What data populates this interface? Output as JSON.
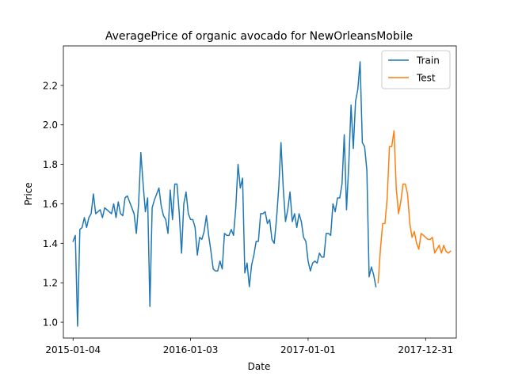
{
  "chart_data": {
    "type": "line",
    "title": "AveragePrice of organic avocado for NewOrleansMobile",
    "xlabel": "Date",
    "ylabel": "Price",
    "xlim": [
      "2014-12-05",
      "2018-04-05"
    ],
    "ylim": [
      0.92,
      2.4
    ],
    "x_ticks": [
      "2015-01-04",
      "2016-01-03",
      "2017-01-01",
      "2017-12-31"
    ],
    "y_ticks": [
      1.0,
      1.2,
      1.4,
      1.6,
      1.8,
      2.0,
      2.2
    ],
    "y_tick_labels": [
      "1.0",
      "1.2",
      "1.4",
      "1.6",
      "1.8",
      "2.0",
      "2.2"
    ],
    "grid": false,
    "legend_position": "upper right",
    "series": [
      {
        "name": "Train",
        "color": "#1f77b4",
        "points": [
          [
            "2015-01-04",
            1.41
          ],
          [
            "2015-01-11",
            1.44
          ],
          [
            "2015-01-18",
            0.98
          ],
          [
            "2015-01-25",
            1.47
          ],
          [
            "2015-02-01",
            1.48
          ],
          [
            "2015-02-08",
            1.53
          ],
          [
            "2015-02-15",
            1.48
          ],
          [
            "2015-02-22",
            1.53
          ],
          [
            "2015-03-01",
            1.55
          ],
          [
            "2015-03-08",
            1.65
          ],
          [
            "2015-03-15",
            1.55
          ],
          [
            "2015-03-22",
            1.56
          ],
          [
            "2015-03-29",
            1.57
          ],
          [
            "2015-04-05",
            1.53
          ],
          [
            "2015-04-12",
            1.58
          ],
          [
            "2015-04-19",
            1.57
          ],
          [
            "2015-04-26",
            1.56
          ],
          [
            "2015-05-03",
            1.55
          ],
          [
            "2015-05-10",
            1.6
          ],
          [
            "2015-05-17",
            1.53
          ],
          [
            "2015-05-24",
            1.61
          ],
          [
            "2015-05-31",
            1.55
          ],
          [
            "2015-06-07",
            1.54
          ],
          [
            "2015-06-14",
            1.63
          ],
          [
            "2015-06-21",
            1.64
          ],
          [
            "2015-06-28",
            1.61
          ],
          [
            "2015-07-05",
            1.58
          ],
          [
            "2015-07-12",
            1.55
          ],
          [
            "2015-07-19",
            1.45
          ],
          [
            "2015-07-26",
            1.6
          ],
          [
            "2015-08-02",
            1.86
          ],
          [
            "2015-08-09",
            1.7
          ],
          [
            "2015-08-16",
            1.56
          ],
          [
            "2015-08-23",
            1.63
          ],
          [
            "2015-08-30",
            1.08
          ],
          [
            "2015-09-06",
            1.58
          ],
          [
            "2015-09-13",
            1.62
          ],
          [
            "2015-09-20",
            1.65
          ],
          [
            "2015-09-27",
            1.68
          ],
          [
            "2015-10-04",
            1.59
          ],
          [
            "2015-10-11",
            1.54
          ],
          [
            "2015-10-18",
            1.52
          ],
          [
            "2015-10-25",
            1.45
          ],
          [
            "2015-11-01",
            1.67
          ],
          [
            "2015-11-08",
            1.52
          ],
          [
            "2015-11-15",
            1.7
          ],
          [
            "2015-11-22",
            1.7
          ],
          [
            "2015-11-29",
            1.55
          ],
          [
            "2015-12-06",
            1.35
          ],
          [
            "2015-12-13",
            1.6
          ],
          [
            "2015-12-20",
            1.66
          ],
          [
            "2015-12-27",
            1.55
          ],
          [
            "2016-01-03",
            1.52
          ],
          [
            "2016-01-10",
            1.52
          ],
          [
            "2016-01-17",
            1.48
          ],
          [
            "2016-01-24",
            1.34
          ],
          [
            "2016-01-31",
            1.43
          ],
          [
            "2016-02-07",
            1.42
          ],
          [
            "2016-02-14",
            1.46
          ],
          [
            "2016-02-21",
            1.54
          ],
          [
            "2016-02-28",
            1.44
          ],
          [
            "2016-03-06",
            1.36
          ],
          [
            "2016-03-13",
            1.27
          ],
          [
            "2016-03-20",
            1.26
          ],
          [
            "2016-03-27",
            1.26
          ],
          [
            "2016-04-03",
            1.31
          ],
          [
            "2016-04-10",
            1.27
          ],
          [
            "2016-04-17",
            1.45
          ],
          [
            "2016-04-24",
            1.44
          ],
          [
            "2016-05-01",
            1.44
          ],
          [
            "2016-05-08",
            1.47
          ],
          [
            "2016-05-15",
            1.44
          ],
          [
            "2016-05-22",
            1.58
          ],
          [
            "2016-05-29",
            1.8
          ],
          [
            "2016-06-05",
            1.68
          ],
          [
            "2016-06-12",
            1.73
          ],
          [
            "2016-06-19",
            1.25
          ],
          [
            "2016-06-26",
            1.3
          ],
          [
            "2016-07-03",
            1.18
          ],
          [
            "2016-07-10",
            1.29
          ],
          [
            "2016-07-17",
            1.34
          ],
          [
            "2016-07-24",
            1.41
          ],
          [
            "2016-07-31",
            1.41
          ],
          [
            "2016-08-07",
            1.55
          ],
          [
            "2016-08-14",
            1.55
          ],
          [
            "2016-08-21",
            1.56
          ],
          [
            "2016-08-28",
            1.5
          ],
          [
            "2016-09-04",
            1.52
          ],
          [
            "2016-09-11",
            1.42
          ],
          [
            "2016-09-18",
            1.4
          ],
          [
            "2016-09-25",
            1.52
          ],
          [
            "2016-10-02",
            1.68
          ],
          [
            "2016-10-09",
            1.91
          ],
          [
            "2016-10-16",
            1.68
          ],
          [
            "2016-10-23",
            1.51
          ],
          [
            "2016-10-30",
            1.57
          ],
          [
            "2016-11-06",
            1.66
          ],
          [
            "2016-11-13",
            1.51
          ],
          [
            "2016-11-20",
            1.55
          ],
          [
            "2016-11-27",
            1.48
          ],
          [
            "2016-12-04",
            1.55
          ],
          [
            "2016-12-11",
            1.51
          ],
          [
            "2016-12-18",
            1.43
          ],
          [
            "2016-12-25",
            1.41
          ],
          [
            "2017-01-01",
            1.31
          ],
          [
            "2017-01-08",
            1.26
          ],
          [
            "2017-01-15",
            1.3
          ],
          [
            "2017-01-22",
            1.31
          ],
          [
            "2017-01-29",
            1.3
          ],
          [
            "2017-02-05",
            1.35
          ],
          [
            "2017-02-12",
            1.33
          ],
          [
            "2017-02-19",
            1.33
          ],
          [
            "2017-02-26",
            1.45
          ],
          [
            "2017-03-05",
            1.45
          ],
          [
            "2017-03-12",
            1.44
          ],
          [
            "2017-03-19",
            1.6
          ],
          [
            "2017-03-26",
            1.56
          ],
          [
            "2017-04-02",
            1.63
          ],
          [
            "2017-04-09",
            1.63
          ],
          [
            "2017-04-16",
            1.7
          ],
          [
            "2017-04-23",
            1.95
          ],
          [
            "2017-04-30",
            1.57
          ],
          [
            "2017-05-07",
            1.8
          ],
          [
            "2017-05-14",
            2.1
          ],
          [
            "2017-05-21",
            1.88
          ],
          [
            "2017-05-28",
            2.12
          ],
          [
            "2017-06-04",
            2.18
          ],
          [
            "2017-06-11",
            2.32
          ],
          [
            "2017-06-18",
            1.91
          ],
          [
            "2017-06-25",
            1.89
          ],
          [
            "2017-07-02",
            1.77
          ],
          [
            "2017-07-09",
            1.23
          ],
          [
            "2017-07-16",
            1.28
          ],
          [
            "2017-07-23",
            1.24
          ],
          [
            "2017-07-30",
            1.18
          ]
        ]
      },
      {
        "name": "Test",
        "color": "#ff7f0e",
        "points": [
          [
            "2017-08-06",
            1.2
          ],
          [
            "2017-08-13",
            1.37
          ],
          [
            "2017-08-20",
            1.5
          ],
          [
            "2017-08-27",
            1.5
          ],
          [
            "2017-09-03",
            1.63
          ],
          [
            "2017-09-10",
            1.89
          ],
          [
            "2017-09-17",
            1.89
          ],
          [
            "2017-09-24",
            1.97
          ],
          [
            "2017-10-01",
            1.68
          ],
          [
            "2017-10-08",
            1.55
          ],
          [
            "2017-10-15",
            1.61
          ],
          [
            "2017-10-22",
            1.7
          ],
          [
            "2017-10-29",
            1.7
          ],
          [
            "2017-11-05",
            1.65
          ],
          [
            "2017-11-12",
            1.5
          ],
          [
            "2017-11-19",
            1.43
          ],
          [
            "2017-11-26",
            1.46
          ],
          [
            "2017-12-03",
            1.4
          ],
          [
            "2017-12-10",
            1.37
          ],
          [
            "2017-12-17",
            1.45
          ],
          [
            "2017-12-24",
            1.44
          ],
          [
            "2017-12-31",
            1.43
          ],
          [
            "2018-01-07",
            1.42
          ],
          [
            "2018-01-14",
            1.42
          ],
          [
            "2018-01-21",
            1.43
          ],
          [
            "2018-01-28",
            1.35
          ],
          [
            "2018-02-04",
            1.37
          ],
          [
            "2018-02-11",
            1.39
          ],
          [
            "2018-02-18",
            1.35
          ],
          [
            "2018-02-25",
            1.39
          ],
          [
            "2018-03-04",
            1.36
          ],
          [
            "2018-03-11",
            1.35
          ],
          [
            "2018-03-18",
            1.36
          ]
        ]
      }
    ]
  }
}
